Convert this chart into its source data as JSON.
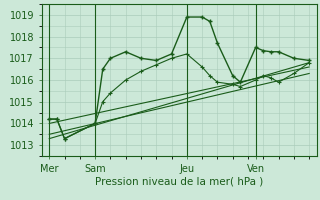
{
  "bg_color": "#cce8d8",
  "grid_color": "#aaccbb",
  "line_color": "#1a5c1a",
  "text_color": "#1a5c1a",
  "ylabel_ticks": [
    1013,
    1014,
    1015,
    1016,
    1017,
    1018,
    1019
  ],
  "ylim": [
    1012.5,
    1019.5
  ],
  "xlabel": "Pression niveau de la mer( hPa )",
  "day_labels": [
    "Mer",
    "Sam",
    "Jeu",
    "Ven"
  ],
  "day_positions": [
    0,
    24,
    72,
    108
  ],
  "series1_x": [
    0,
    4,
    8,
    24,
    28,
    32,
    40,
    48,
    56,
    64,
    72,
    80,
    84,
    88,
    96,
    100,
    108,
    112,
    116,
    120,
    128,
    136
  ],
  "series1_y": [
    1014.2,
    1014.2,
    1013.3,
    1014.0,
    1016.5,
    1017.0,
    1017.3,
    1017.0,
    1016.9,
    1017.2,
    1018.9,
    1018.9,
    1018.7,
    1017.7,
    1016.2,
    1015.9,
    1017.5,
    1017.35,
    1017.3,
    1017.3,
    1017.0,
    1016.9
  ],
  "series2_x": [
    0,
    4,
    8,
    24,
    28,
    32,
    40,
    48,
    56,
    64,
    72,
    80,
    84,
    88,
    96,
    100,
    108,
    112,
    116,
    120,
    128,
    136
  ],
  "series2_y": [
    1014.2,
    1014.2,
    1013.3,
    1014.0,
    1015.0,
    1015.4,
    1016.0,
    1016.4,
    1016.7,
    1017.0,
    1017.2,
    1016.6,
    1016.2,
    1015.9,
    1015.8,
    1015.7,
    1016.0,
    1016.2,
    1016.1,
    1015.9,
    1016.3,
    1016.8
  ],
  "trend1_x": [
    0,
    136
  ],
  "trend1_y": [
    1013.3,
    1016.8
  ],
  "trend2_x": [
    0,
    136
  ],
  "trend2_y": [
    1013.5,
    1016.3
  ],
  "trend3_x": [
    0,
    136
  ],
  "trend3_y": [
    1014.0,
    1016.6
  ],
  "xlim": [
    -4,
    140
  ],
  "figsize": [
    3.2,
    2.0
  ],
  "dpi": 100
}
